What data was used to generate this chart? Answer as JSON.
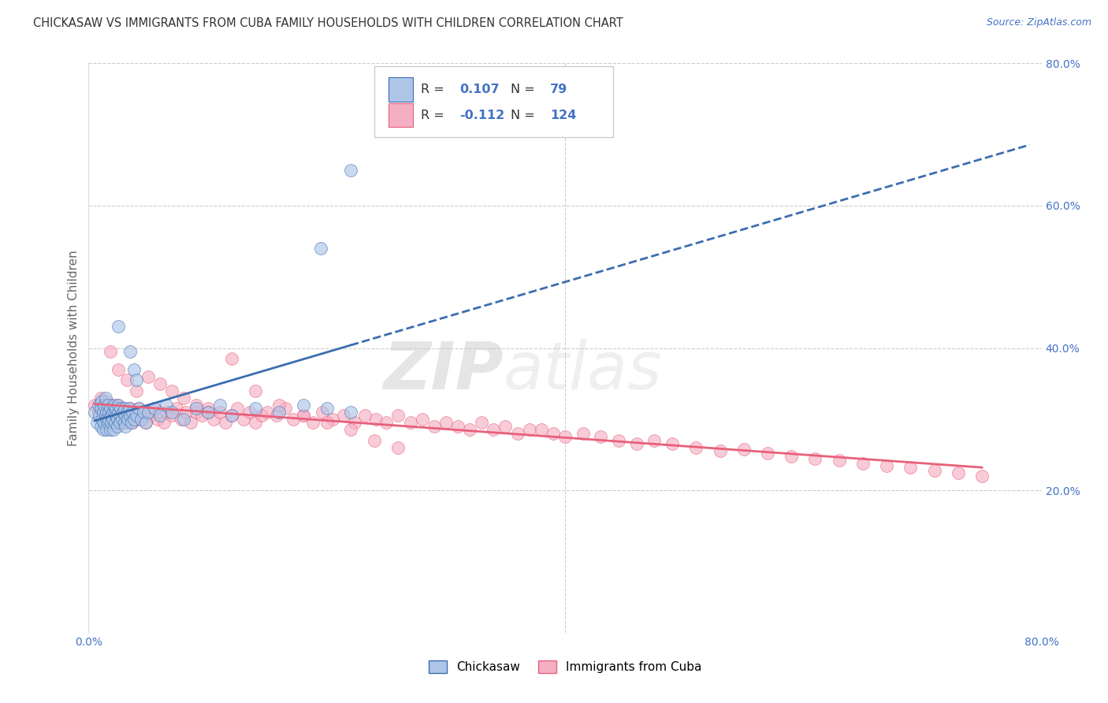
{
  "title": "CHICKASAW VS IMMIGRANTS FROM CUBA FAMILY HOUSEHOLDS WITH CHILDREN CORRELATION CHART",
  "source": "Source: ZipAtlas.com",
  "ylabel": "Family Households with Children",
  "legend_label1": "Chickasaw",
  "legend_label2": "Immigrants from Cuba",
  "r1": 0.107,
  "n1": 79,
  "r2": -0.112,
  "n2": 124,
  "color1": "#adc6e8",
  "color2": "#f5afc4",
  "line_color1": "#3c6db0",
  "line_color2": "#e8607a",
  "xlim": [
    0.0,
    0.8
  ],
  "ylim": [
    0.0,
    0.8
  ],
  "right_ytick_labels": [
    "20.0%",
    "40.0%",
    "60.0%",
    "80.0%"
  ],
  "right_ytick_positions": [
    0.2,
    0.4,
    0.6,
    0.8
  ],
  "chickasaw_x": [
    0.005,
    0.007,
    0.008,
    0.009,
    0.01,
    0.01,
    0.011,
    0.011,
    0.012,
    0.012,
    0.013,
    0.013,
    0.014,
    0.014,
    0.015,
    0.015,
    0.015,
    0.016,
    0.016,
    0.017,
    0.017,
    0.018,
    0.018,
    0.019,
    0.019,
    0.02,
    0.02,
    0.021,
    0.021,
    0.022,
    0.022,
    0.023,
    0.023,
    0.024,
    0.024,
    0.025,
    0.025,
    0.026,
    0.026,
    0.027,
    0.028,
    0.029,
    0.03,
    0.03,
    0.031,
    0.031,
    0.032,
    0.033,
    0.034,
    0.035,
    0.036,
    0.037,
    0.038,
    0.04,
    0.042,
    0.044,
    0.046,
    0.048,
    0.05,
    0.055,
    0.06,
    0.065,
    0.07,
    0.08,
    0.09,
    0.1,
    0.11,
    0.12,
    0.14,
    0.16,
    0.18,
    0.2,
    0.22,
    0.025,
    0.035,
    0.038,
    0.04,
    0.22,
    0.195
  ],
  "chickasaw_y": [
    0.31,
    0.295,
    0.32,
    0.305,
    0.315,
    0.29,
    0.325,
    0.3,
    0.285,
    0.31,
    0.32,
    0.295,
    0.305,
    0.33,
    0.31,
    0.285,
    0.3,
    0.32,
    0.295,
    0.31,
    0.3,
    0.285,
    0.315,
    0.305,
    0.295,
    0.31,
    0.3,
    0.32,
    0.285,
    0.31,
    0.295,
    0.305,
    0.315,
    0.3,
    0.29,
    0.31,
    0.32,
    0.305,
    0.295,
    0.315,
    0.3,
    0.31,
    0.295,
    0.315,
    0.305,
    0.29,
    0.31,
    0.3,
    0.315,
    0.305,
    0.295,
    0.31,
    0.3,
    0.305,
    0.315,
    0.3,
    0.31,
    0.295,
    0.31,
    0.315,
    0.305,
    0.32,
    0.31,
    0.3,
    0.315,
    0.31,
    0.32,
    0.305,
    0.315,
    0.31,
    0.32,
    0.315,
    0.31,
    0.43,
    0.395,
    0.37,
    0.355,
    0.65,
    0.54
  ],
  "cuba_x": [
    0.005,
    0.008,
    0.01,
    0.012,
    0.013,
    0.014,
    0.015,
    0.016,
    0.017,
    0.018,
    0.019,
    0.02,
    0.021,
    0.022,
    0.023,
    0.024,
    0.025,
    0.026,
    0.027,
    0.028,
    0.029,
    0.03,
    0.031,
    0.032,
    0.033,
    0.034,
    0.035,
    0.036,
    0.037,
    0.038,
    0.04,
    0.042,
    0.044,
    0.046,
    0.048,
    0.05,
    0.052,
    0.055,
    0.058,
    0.06,
    0.063,
    0.066,
    0.07,
    0.074,
    0.078,
    0.082,
    0.086,
    0.09,
    0.095,
    0.1,
    0.105,
    0.11,
    0.115,
    0.12,
    0.125,
    0.13,
    0.135,
    0.14,
    0.145,
    0.15,
    0.158,
    0.165,
    0.172,
    0.18,
    0.188,
    0.196,
    0.205,
    0.214,
    0.223,
    0.232,
    0.241,
    0.25,
    0.26,
    0.27,
    0.28,
    0.29,
    0.3,
    0.31,
    0.32,
    0.33,
    0.34,
    0.35,
    0.36,
    0.37,
    0.38,
    0.39,
    0.4,
    0.415,
    0.43,
    0.445,
    0.46,
    0.475,
    0.49,
    0.51,
    0.53,
    0.55,
    0.57,
    0.59,
    0.61,
    0.63,
    0.65,
    0.67,
    0.69,
    0.71,
    0.73,
    0.75,
    0.018,
    0.025,
    0.032,
    0.04,
    0.05,
    0.06,
    0.07,
    0.08,
    0.09,
    0.1,
    0.12,
    0.14,
    0.16,
    0.18,
    0.2,
    0.22,
    0.24,
    0.26
  ],
  "cuba_y": [
    0.32,
    0.31,
    0.33,
    0.315,
    0.3,
    0.325,
    0.31,
    0.295,
    0.315,
    0.305,
    0.32,
    0.31,
    0.3,
    0.315,
    0.305,
    0.32,
    0.31,
    0.295,
    0.315,
    0.305,
    0.3,
    0.315,
    0.305,
    0.295,
    0.31,
    0.3,
    0.315,
    0.305,
    0.295,
    0.31,
    0.305,
    0.315,
    0.3,
    0.31,
    0.295,
    0.31,
    0.305,
    0.315,
    0.3,
    0.31,
    0.295,
    0.31,
    0.305,
    0.315,
    0.3,
    0.31,
    0.295,
    0.31,
    0.305,
    0.315,
    0.3,
    0.31,
    0.295,
    0.305,
    0.315,
    0.3,
    0.31,
    0.295,
    0.305,
    0.31,
    0.305,
    0.315,
    0.3,
    0.305,
    0.295,
    0.31,
    0.3,
    0.305,
    0.295,
    0.305,
    0.3,
    0.295,
    0.305,
    0.295,
    0.3,
    0.29,
    0.295,
    0.29,
    0.285,
    0.295,
    0.285,
    0.29,
    0.28,
    0.285,
    0.285,
    0.28,
    0.275,
    0.28,
    0.275,
    0.27,
    0.265,
    0.27,
    0.265,
    0.26,
    0.255,
    0.258,
    0.252,
    0.248,
    0.245,
    0.242,
    0.238,
    0.235,
    0.232,
    0.228,
    0.225,
    0.22,
    0.395,
    0.37,
    0.355,
    0.34,
    0.36,
    0.35,
    0.34,
    0.33,
    0.32,
    0.31,
    0.385,
    0.34,
    0.32,
    0.305,
    0.295,
    0.285,
    0.27,
    0.26
  ]
}
